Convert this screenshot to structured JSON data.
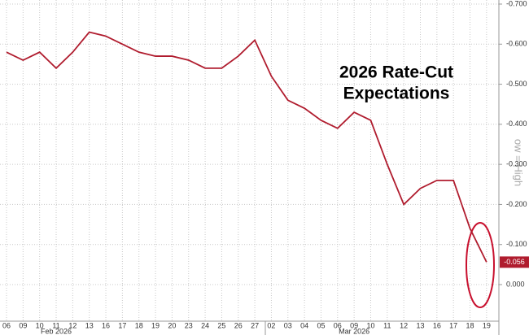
{
  "chart_data": {
    "type": "line",
    "title_lines": [
      "2026 Rate-Cut",
      "Expectations"
    ],
    "y_axis_label": "ow = High",
    "categories": [
      "06",
      "09",
      "10",
      "11",
      "12",
      "13",
      "16",
      "17",
      "18",
      "19",
      "20",
      "23",
      "24",
      "25",
      "26",
      "27",
      "02",
      "03",
      "04",
      "05",
      "06",
      "09",
      "10",
      "11",
      "12",
      "13",
      "16",
      "17",
      "18",
      "19"
    ],
    "month_labels": [
      {
        "label": "Feb 2026",
        "at": "11"
      },
      {
        "label": "Mar 2026",
        "at": "09"
      }
    ],
    "series": [
      {
        "name": "2026 Rate-Cut Expectations",
        "color": "#b01c2e",
        "values": [
          -0.58,
          -0.56,
          -0.58,
          -0.54,
          -0.58,
          -0.63,
          -0.62,
          -0.6,
          -0.58,
          -0.57,
          -0.57,
          -0.56,
          -0.54,
          -0.54,
          -0.57,
          -0.61,
          -0.52,
          -0.46,
          -0.44,
          -0.41,
          -0.39,
          -0.43,
          -0.41,
          -0.3,
          -0.2,
          -0.24,
          -0.26,
          -0.26,
          -0.14,
          -0.056
        ],
        "value_labels": [
          null,
          null,
          null,
          null,
          null,
          null,
          null,
          null,
          null,
          null,
          null,
          null,
          null,
          null,
          null,
          null,
          null,
          null,
          null,
          null,
          null,
          null,
          null,
          null,
          null,
          null,
          null,
          null,
          null,
          "-0.056"
        ]
      }
    ],
    "ylim": [
      0.09,
      -0.71
    ],
    "yticks": [
      {
        "value": -0.7,
        "label": "-0.700"
      },
      {
        "value": -0.6,
        "label": "-0.600"
      },
      {
        "value": -0.5,
        "label": "-0.500"
      },
      {
        "value": -0.4,
        "label": "-0.400"
      },
      {
        "value": -0.3,
        "label": "-0.300"
      },
      {
        "value": -0.2,
        "label": "-0.200"
      },
      {
        "value": -0.1,
        "label": "-0.100"
      },
      {
        "value": 0,
        "label": "0.000"
      }
    ],
    "grid": true
  }
}
